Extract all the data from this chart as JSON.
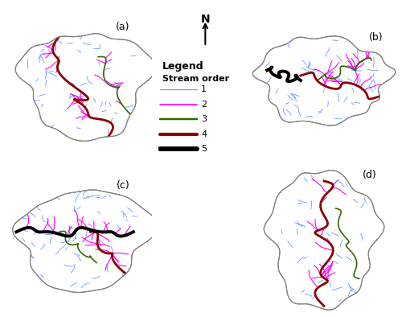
{
  "title": "",
  "labels": [
    "(a)",
    "(b)",
    "(c)",
    "(d)"
  ],
  "legend_title": "Legend",
  "legend_subtitle": "Stream order",
  "stream_orders": [
    "1",
    "2",
    "3",
    "4",
    "5"
  ],
  "colors": {
    "order1": "#6699FF",
    "order2": "#FF00FF",
    "order3": "#336600",
    "order4": "#8B0000",
    "order5": "#000000",
    "watershed_boundary": "#808080",
    "background": "#FFFFFF"
  },
  "linewidths": {
    "order1": 0.6,
    "order2": 0.8,
    "order3": 1.2,
    "order4": 2.0,
    "order5": 2.8
  }
}
